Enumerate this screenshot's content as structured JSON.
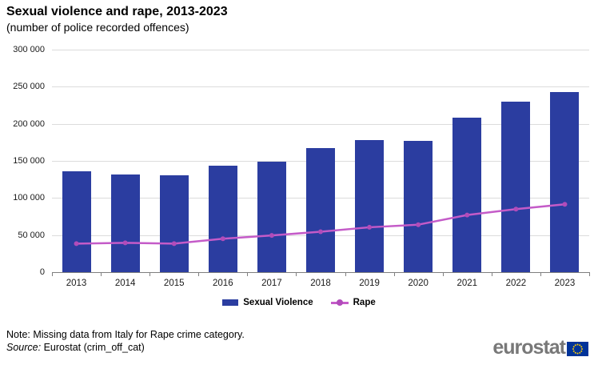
{
  "header": {
    "title": "Sexual violence and rape, 2013-2023",
    "subtitle": "(number of police recorded offences)"
  },
  "chart_data": {
    "type": "bar",
    "categories": [
      "2013",
      "2014",
      "2015",
      "2016",
      "2017",
      "2018",
      "2019",
      "2020",
      "2021",
      "2022",
      "2023"
    ],
    "series": [
      {
        "name": "Sexual Violence",
        "type": "bar",
        "color": "#2b3da0",
        "values": [
          135500,
          132000,
          131000,
          143500,
          148500,
          167000,
          178500,
          177500,
          208000,
          230000,
          243000
        ]
      },
      {
        "name": "Rape",
        "type": "line",
        "color": "#c45bc8",
        "marker_color": "#b14cba",
        "values": [
          38500,
          39500,
          38500,
          45000,
          49500,
          54500,
          60500,
          64000,
          77000,
          85000,
          91500
        ]
      }
    ],
    "title": "Sexual violence and rape, 2013-2023",
    "subtitle": "(number of police recorded offences)",
    "xlabel": "",
    "ylabel": "",
    "ylim": [
      0,
      300000
    ],
    "ytick_step": 50000,
    "ytick_labels": [
      "0",
      "50 000",
      "100 000",
      "150 000",
      "200 000",
      "250 000",
      "300 000"
    ],
    "grid": true,
    "gridline_color": "#dcdcdc",
    "axis_color": "#7f7f7f",
    "legend_position": "bottom"
  },
  "footer": {
    "note": "Note: Missing data from Italy for Rape crime category.",
    "source_label": "Source:",
    "source_text": "Eurostat (crim_off_cat)"
  },
  "branding": {
    "logo_text": "eurostat",
    "flag_color": "#003399",
    "star_color": "#ffcc00",
    "text_color": "#787878"
  }
}
